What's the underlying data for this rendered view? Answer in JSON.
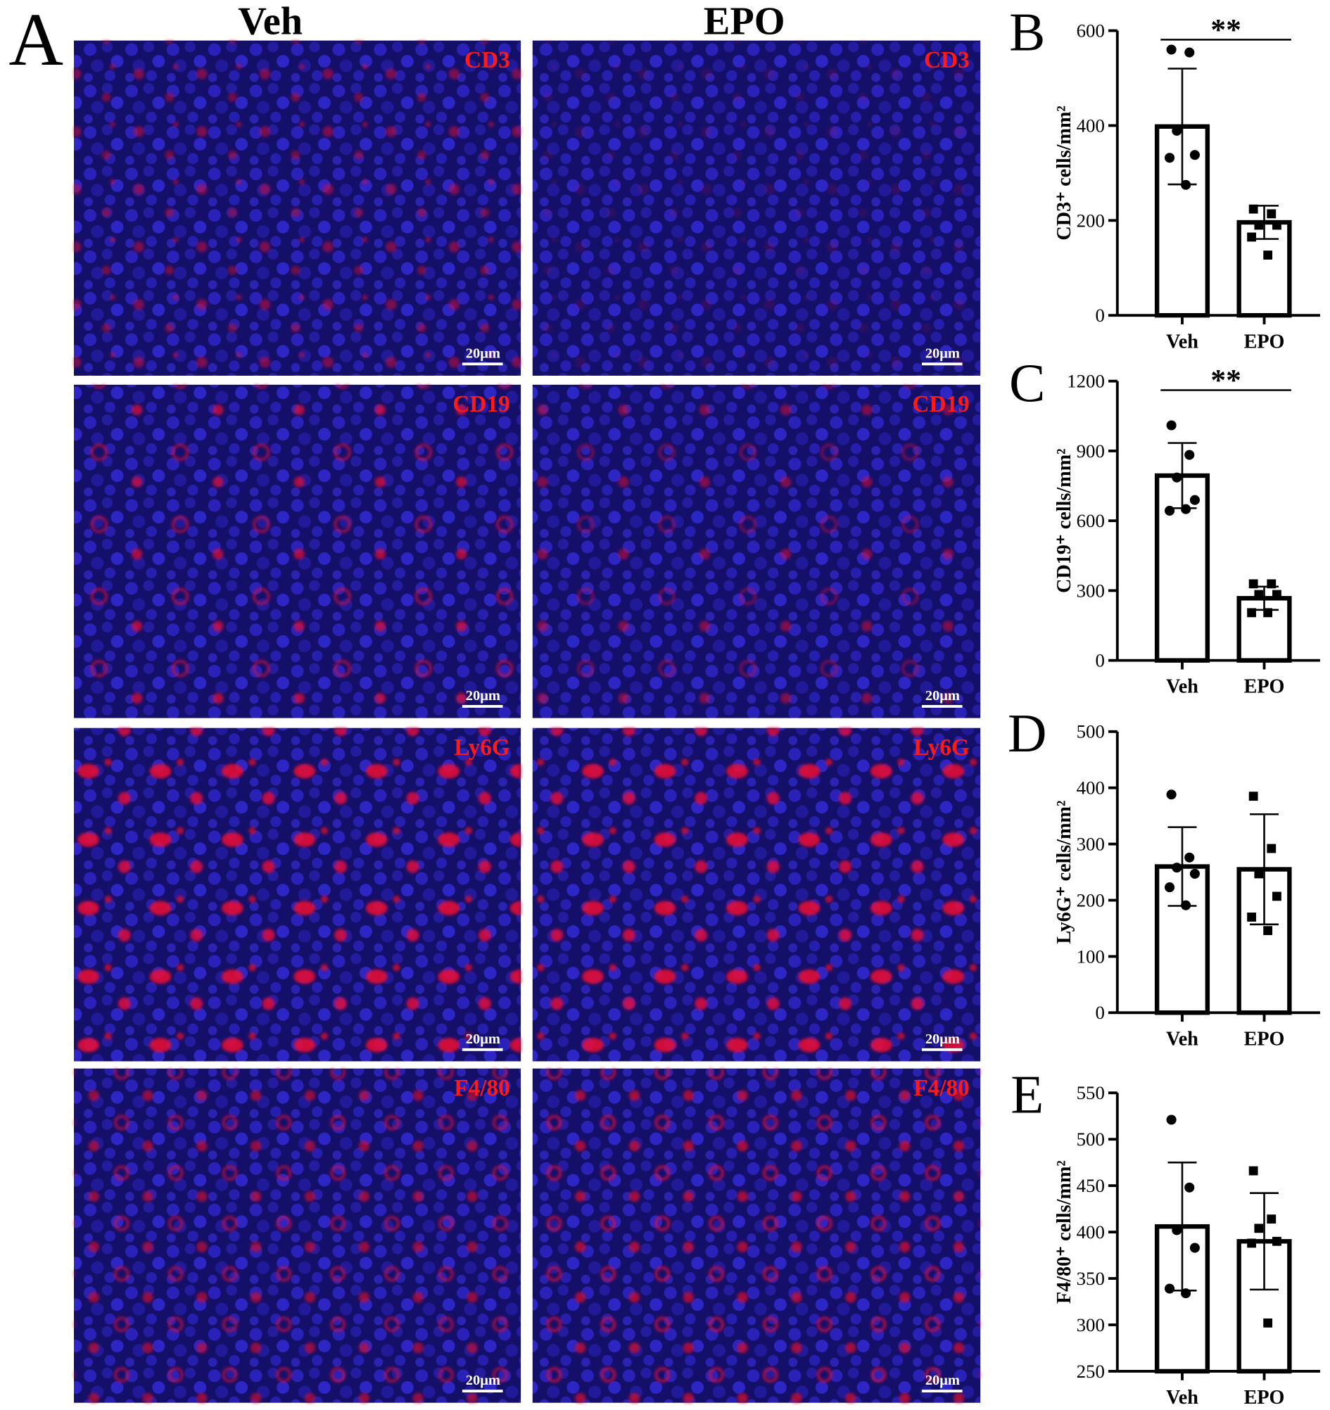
{
  "panel_a": {
    "label": "A",
    "columns": [
      "Veh",
      "EPO"
    ],
    "markers": [
      "CD3",
      "CD19",
      "Ly6G",
      "F4/80"
    ],
    "scale_bar": "20μm"
  },
  "chart_data": [
    {
      "type": "bar",
      "panel_label": "B",
      "y_label": "CD3⁺ cells/mm²",
      "categories": [
        "Veh",
        "EPO"
      ],
      "values": [
        398,
        196
      ],
      "errors": [
        122,
        35
      ],
      "points": [
        [
          560,
          554,
          389,
          338,
          332,
          275
        ],
        [
          224,
          214,
          190,
          190,
          165,
          127
        ]
      ],
      "markers": [
        "circle",
        "square"
      ],
      "significance": "**",
      "ylim": [
        0,
        600
      ],
      "yticks": [
        0,
        200,
        400,
        600
      ]
    },
    {
      "type": "bar",
      "panel_label": "C",
      "y_label": "CD19⁺ cells/mm²",
      "categories": [
        "Veh",
        "EPO"
      ],
      "values": [
        794,
        267
      ],
      "errors": [
        140,
        50
      ],
      "points": [
        [
          1010,
          883,
          786,
          689,
          643,
          650
        ],
        [
          329,
          329,
          283,
          283,
          205,
          205
        ]
      ],
      "markers": [
        "circle",
        "square"
      ],
      "significance": "**",
      "ylim": [
        0,
        1200
      ],
      "yticks": [
        0,
        300,
        600,
        900,
        1200
      ]
    },
    {
      "type": "bar",
      "panel_label": "D",
      "y_label": "Ly6G⁺ cells/mm²",
      "categories": [
        "Veh",
        "EPO"
      ],
      "values": [
        260,
        255
      ],
      "errors": [
        70,
        98
      ],
      "points": [
        [
          388,
          276,
          258,
          247,
          223,
          191
        ],
        [
          385,
          292,
          247,
          207,
          170,
          146
        ]
      ],
      "markers": [
        "circle",
        "square"
      ],
      "ylim": [
        0,
        500
      ],
      "yticks": [
        0,
        100,
        200,
        300,
        400,
        500
      ]
    },
    {
      "type": "bar",
      "panel_label": "E",
      "y_label": "F4/80⁺ cells/mm²",
      "categories": [
        "Veh",
        "EPO"
      ],
      "values": [
        406,
        390
      ],
      "errors": [
        69,
        52
      ],
      "points": [
        [
          521,
          448,
          402,
          383,
          339,
          334
        ],
        [
          466,
          414,
          404,
          390,
          388,
          302
        ]
      ],
      "markers": [
        "circle",
        "square"
      ],
      "ylim": [
        250,
        550
      ],
      "yticks": [
        250,
        300,
        350,
        400,
        450,
        500,
        550
      ]
    }
  ]
}
